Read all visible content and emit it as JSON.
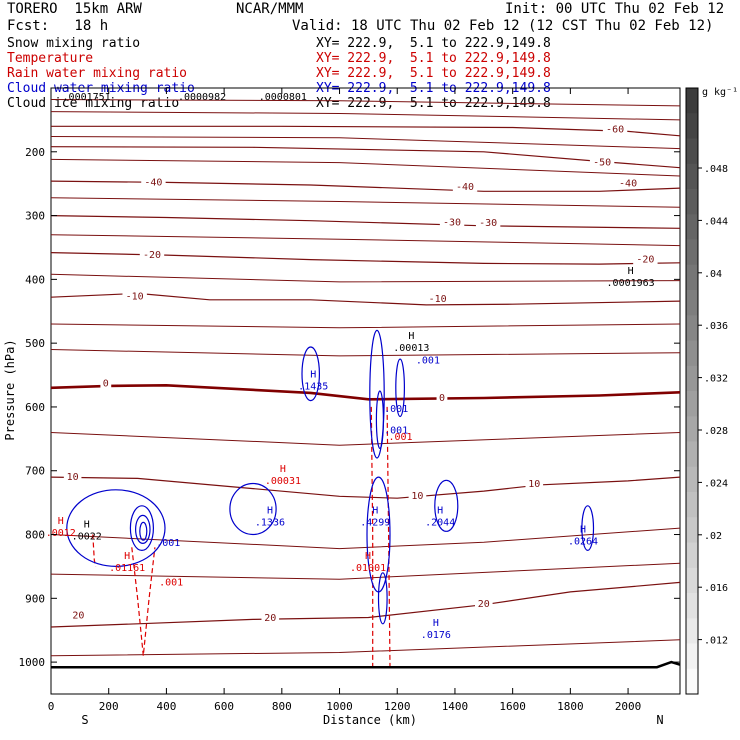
{
  "header": {
    "model": "TORERO  15km ARW",
    "center": "NCAR/MMM",
    "init": "Init: 00 UTC Thu 02 Feb 12",
    "fcst": "Fcst:   18 h",
    "valid": "Valid: 18 UTC Thu 02 Feb 12 (12 CST Thu 02 Feb 12)"
  },
  "legend": [
    {
      "label": "Snow mixing ratio",
      "color": "#000000",
      "xy": "XY= 222.9,  5.1 to 222.9,149.8"
    },
    {
      "label": "Temperature",
      "color": "#cc0000",
      "xy": "XY= 222.9,  5.1 to 222.9,149.8"
    },
    {
      "label": "Rain water mixing ratio",
      "color": "#cc0000",
      "xy": "XY= 222.9,  5.1 to 222.9,149.8"
    },
    {
      "label": "Cloud water mixing ratio",
      "color": "#0000cc",
      "xy": "XY= 222.9,  5.1 to 222.9,149.8"
    },
    {
      "label": "Cloud ice mixing ratio",
      "color": "#000000",
      "xy": "XY= 222.9,  5.1 to 222.9,149.8"
    }
  ],
  "colors": {
    "temperature": "#7a1010",
    "freezing": "#800000",
    "rain": "#dd0000",
    "cloud": "#0000cc",
    "ground": "#000000"
  },
  "chart_data": {
    "type": "cross-section",
    "xlabel": "Distance (km)",
    "ylabel": "Pressure (hPa)",
    "xlim": [
      0,
      2180
    ],
    "ylim": [
      1050,
      100
    ],
    "x_ticks": [
      0,
      200,
      400,
      600,
      800,
      1000,
      1200,
      1400,
      1600,
      1800,
      2000
    ],
    "y_ticks": [
      200,
      300,
      400,
      500,
      600,
      700,
      800,
      900,
      1000
    ],
    "x_end_labels": {
      "left": "S",
      "right": "N"
    },
    "colorbar": {
      "units": "g kg⁻¹",
      "ticks": [
        ".048",
        ".044",
        ".04",
        ".036",
        ".032",
        ".028",
        ".024",
        ".02",
        ".016",
        ".012"
      ],
      "range": [
        0.008,
        0.052
      ]
    },
    "temperature_labels": [
      {
        "x": 1955,
        "p": 168,
        "text": "-60"
      },
      {
        "x": 1910,
        "p": 220,
        "text": "-50"
      },
      {
        "x": 2000,
        "p": 253,
        "text": "-40"
      },
      {
        "x": 355,
        "p": 251,
        "text": "-40"
      },
      {
        "x": 1435,
        "p": 258,
        "text": "-40"
      },
      {
        "x": 1390,
        "p": 314,
        "text": "-30"
      },
      {
        "x": 1515,
        "p": 315,
        "text": "-30"
      },
      {
        "x": 350,
        "p": 365,
        "text": "-20"
      },
      {
        "x": 2060,
        "p": 372,
        "text": "-20"
      },
      {
        "x": 290,
        "p": 430,
        "text": "-10"
      },
      {
        "x": 1340,
        "p": 434,
        "text": "-10"
      },
      {
        "x": 190,
        "p": 566,
        "text": "0"
      },
      {
        "x": 1355,
        "p": 589,
        "text": "0"
      },
      {
        "x": 75,
        "p": 713,
        "text": "10"
      },
      {
        "x": 1270,
        "p": 743,
        "text": "10"
      },
      {
        "x": 1675,
        "p": 724,
        "text": "10"
      },
      {
        "x": 95,
        "p": 930,
        "text": "20"
      },
      {
        "x": 760,
        "p": 934,
        "text": "20"
      },
      {
        "x": 1500,
        "p": 912,
        "text": "20"
      }
    ],
    "cloud_water_maxima": [
      {
        "x": 895,
        "p": 560,
        "h": "H",
        "text": ".1435"
      },
      {
        "x": 745,
        "p": 773,
        "h": "H",
        "text": ".1336"
      },
      {
        "x": 1110,
        "p": 773,
        "h": "H",
        "text": ".4299"
      },
      {
        "x": 1335,
        "p": 773,
        "h": "H",
        "text": ".2044"
      },
      {
        "x": 1830,
        "p": 803,
        "h": "H",
        "text": ".0264"
      },
      {
        "x": 1320,
        "p": 950,
        "h": "H",
        "text": ".0176"
      }
    ],
    "cloud_water_contour_labels": [
      {
        "x": 330,
        "p": 818,
        "text": ".001"
      },
      {
        "x": 1120,
        "p": 608,
        "text": ".001"
      },
      {
        "x": 1120,
        "p": 642,
        "text": ".001"
      },
      {
        "x": 1230,
        "p": 532,
        "text": ".001"
      }
    ],
    "rain_maxima": [
      {
        "x": 790,
        "p": 708,
        "h": "H",
        "text": ".00031"
      },
      {
        "x": 250,
        "p": 845,
        "h": "H",
        "text": ".01161"
      },
      {
        "x": 1085,
        "p": 845,
        "h": "H",
        "text": ".01001"
      },
      {
        "x": 20,
        "p": 790,
        "h": "H",
        "text": ".0012"
      }
    ],
    "rain_contour_labels": [
      {
        "x": 340,
        "p": 880,
        "text": ".001"
      },
      {
        "x": 1135,
        "p": 652,
        "text": ".001"
      }
    ],
    "snow_ice_maxima": [
      {
        "x": 1235,
        "p": 500,
        "h": "H",
        "text": ".00013"
      },
      {
        "x": 1995,
        "p": 398,
        "h": "H",
        "text": ".0001963"
      },
      {
        "x": 110,
        "p": 795,
        "h": "H",
        "text": ".0022"
      }
    ],
    "top_labels": [
      {
        "x": 40,
        "text": ".0001751"
      },
      {
        "x": 440,
        "text": ".0000982"
      },
      {
        "x": 720,
        "text": ".0000801"
      }
    ],
    "temperature_isotherms_C": [
      -60,
      -50,
      -40,
      -30,
      -20,
      -10,
      0,
      10,
      20
    ]
  }
}
